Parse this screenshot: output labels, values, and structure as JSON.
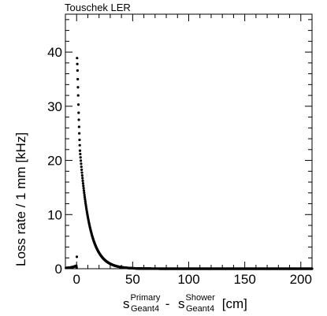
{
  "chart_data": {
    "type": "scatter",
    "title": "Touschek LER",
    "xlabel": {
      "part1_base": "s",
      "part1_sup": "Primary",
      "part1_sub": "Geant4",
      "separator": " - ",
      "part2_base": "s",
      "part2_sup": "Shower",
      "part2_sub": "Geant4",
      "unit": " [cm]"
    },
    "ylabel": "Loss rate / 1 mm [kHz]",
    "xlim": [
      -10,
      210
    ],
    "ylim": [
      0,
      47
    ],
    "xticks": [
      "0",
      "50",
      "100",
      "150",
      "200"
    ],
    "xtick_values": [
      0,
      50,
      100,
      150,
      200
    ],
    "yticks": [
      "0",
      "10",
      "20",
      "30",
      "40"
    ],
    "ytick_values": [
      0,
      10,
      20,
      30,
      40
    ],
    "grid": false,
    "marker_color": "#000000",
    "description_of_data": "dense black dots",
    "series": [
      {
        "peak_points": [
          {
            "x": 0.0,
            "y": 0.2
          },
          {
            "x": 0.2,
            "y": 2.2
          },
          {
            "x": 0.4,
            "y": 38.9
          },
          {
            "x": 0.6,
            "y": 37.8
          },
          {
            "x": 0.8,
            "y": 36.6
          },
          {
            "x": 1.0,
            "y": 35.0
          },
          {
            "x": 1.2,
            "y": 33.5
          },
          {
            "x": 1.4,
            "y": 32.0
          },
          {
            "x": 1.6,
            "y": 30.3
          },
          {
            "x": 1.8,
            "y": 28.8
          },
          {
            "x": 2.0,
            "y": 27.5
          },
          {
            "x": 2.2,
            "y": 26.2
          },
          {
            "x": 2.4,
            "y": 25.0
          },
          {
            "x": 2.6,
            "y": 23.8
          },
          {
            "x": 2.8,
            "y": 22.8
          },
          {
            "x": 3.0,
            "y": 21.8
          }
        ],
        "decay_model": {
          "amplitude": 21.8,
          "x0": 3.0,
          "length": 8.5
        },
        "decay_x_start": 3.0,
        "decay_x_end": 210,
        "decay_step": 0.25,
        "negative_side": {
          "x_start": -9.5,
          "x_end": -0.2,
          "step": 0.25,
          "y_base": 0.15,
          "y_rise": 0.4
        }
      }
    ]
  }
}
